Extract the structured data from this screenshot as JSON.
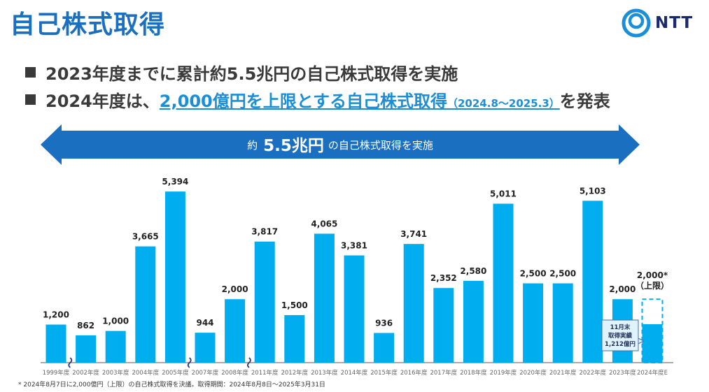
{
  "title": "自己株式取得",
  "logo": {
    "text": "NTT",
    "icon": "ntt-ring-logo"
  },
  "bullets": {
    "b1": "2023年度までに累計約5.5兆円の自己株式取得を実施",
    "b2_pre": "2024年度は、",
    "b2_link": "2,000億円を上限とする自己株式取得",
    "b2_period": "（2024.8～2025.3）",
    "b2_post": "を発表"
  },
  "banner": {
    "pre": "約",
    "amount": "5.5兆円",
    "post": "の自己株式取得を実施"
  },
  "footnote": "* 2024年8月7日に2,000億円（上限）の自己株式取得を決議。取得期間：2024年8月8日～2025年3月31日",
  "colors": {
    "bar": "#00aeef",
    "title": "#1a6fc0",
    "banner": "#1a6fc0",
    "accent": "#1a8ed6",
    "break_mark": "#1f3d7a"
  },
  "chart_data": {
    "type": "bar",
    "categories": [
      "1999年度",
      "2002年度",
      "2003年度",
      "2004年度",
      "2005年度",
      "2007年度",
      "2008年度",
      "2011年度",
      "2012年度",
      "2013年度",
      "2014年度",
      "2015年度",
      "2016年度",
      "2017年度",
      "2018年度",
      "2019年度",
      "2020年度",
      "2021年度",
      "2022年度",
      "2023年度",
      "2024年度E"
    ],
    "values": [
      1200,
      862,
      1000,
      3665,
      5394,
      944,
      2000,
      3817,
      1500,
      4065,
      3381,
      936,
      3741,
      2352,
      2580,
      5011,
      2500,
      2500,
      5103,
      2000,
      2000
    ],
    "value_labels": [
      "1,200",
      "862",
      "1,000",
      "3,665",
      "5,394",
      "944",
      "2,000",
      "3,817",
      "1,500",
      "4,065",
      "3,381",
      "936",
      "3,741",
      "2,352",
      "2,580",
      "5,011",
      "2,500",
      "2,500",
      "5,103",
      "2,000",
      "2,000*"
    ],
    "last_bar": {
      "style": "dashed-outline",
      "cap_label": "（上限）",
      "achieved_value": 1212,
      "callout": [
        "11月末",
        "取得実績",
        "1,212億円"
      ]
    },
    "axis_breaks_after": [
      "1999年度",
      "2005年度",
      "2008年度"
    ],
    "ylim": [
      0,
      5600
    ],
    "grid": false,
    "legend": "none"
  }
}
